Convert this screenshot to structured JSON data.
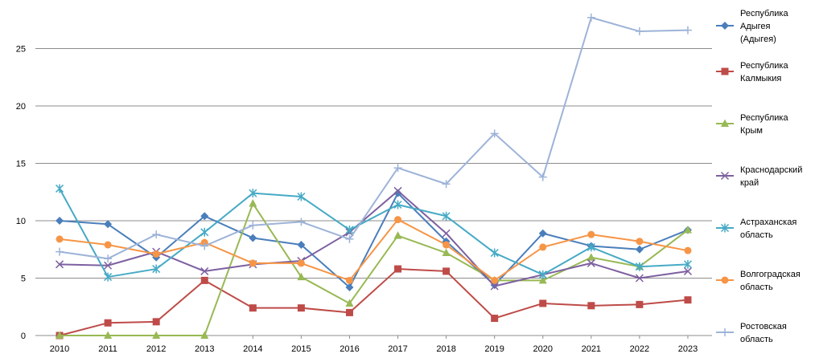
{
  "chart_data": {
    "type": "line",
    "title": "",
    "xlabel": "",
    "ylabel": "",
    "ylim": [
      0,
      28
    ],
    "yticks": [
      0,
      5,
      10,
      15,
      20,
      25
    ],
    "grid": "horizontal",
    "legend_position": "right",
    "categories": [
      "2010",
      "2011",
      "2012",
      "2013",
      "2014",
      "2015",
      "2016",
      "2017",
      "2018",
      "2019",
      "2020",
      "2021",
      "2022",
      "2023"
    ],
    "series": [
      {
        "name": [
          "Республика",
          "Адыгея",
          "(Адыгея)"
        ],
        "color": "#4A7EBB",
        "marker": "diamond",
        "values": [
          10.0,
          9.7,
          6.8,
          10.4,
          8.5,
          7.9,
          4.2,
          12.4,
          8.2,
          4.4,
          8.9,
          7.8,
          7.5,
          9.2
        ]
      },
      {
        "name": [
          "Республика",
          "Калмыкия"
        ],
        "color": "#BE4B48",
        "marker": "square",
        "values": [
          0.0,
          1.1,
          1.2,
          4.8,
          2.4,
          2.4,
          2.0,
          5.8,
          5.6,
          1.5,
          2.8,
          2.6,
          2.7,
          3.1
        ]
      },
      {
        "name": [
          "Республика",
          "Крым"
        ],
        "color": "#98B954",
        "marker": "triangle",
        "values": [
          0.0,
          0.0,
          0.0,
          0.0,
          11.5,
          5.1,
          2.8,
          8.7,
          7.2,
          4.8,
          4.8,
          6.8,
          6.0,
          9.2
        ]
      },
      {
        "name": [
          "Краснодарский",
          "край"
        ],
        "color": "#7D60A0",
        "marker": "x",
        "values": [
          6.2,
          6.1,
          7.3,
          5.6,
          6.2,
          6.5,
          9.0,
          12.6,
          8.9,
          4.3,
          5.3,
          6.3,
          5.0,
          5.6
        ]
      },
      {
        "name": [
          "Астраханская",
          "область"
        ],
        "color": "#46AAC5",
        "marker": "star",
        "values": [
          12.8,
          5.1,
          5.8,
          9.0,
          12.4,
          12.1,
          9.2,
          11.4,
          10.4,
          7.2,
          5.3,
          7.7,
          6.0,
          6.2
        ]
      },
      {
        "name": [
          "Волгоградская",
          "область"
        ],
        "color": "#F69546",
        "marker": "circle",
        "values": [
          8.4,
          7.9,
          7.1,
          8.1,
          6.3,
          6.3,
          4.8,
          10.1,
          7.9,
          4.8,
          7.7,
          8.8,
          8.2,
          7.4
        ]
      },
      {
        "name": [
          "Ростовская",
          "область"
        ],
        "color": "#9DB3D8",
        "marker": "plus",
        "values": [
          7.3,
          6.7,
          8.8,
          7.8,
          9.6,
          9.9,
          8.4,
          14.6,
          13.2,
          17.6,
          13.8,
          27.7,
          26.5,
          26.6
        ]
      }
    ]
  }
}
